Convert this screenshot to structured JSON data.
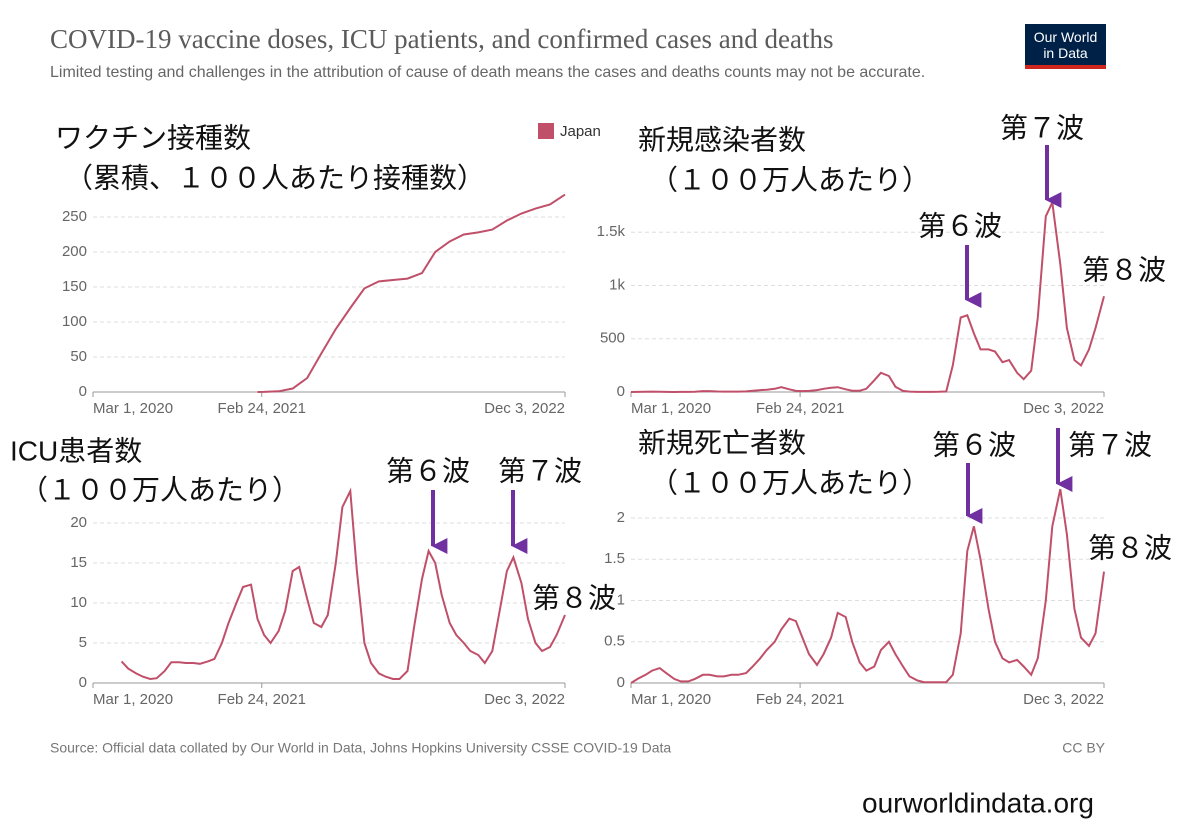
{
  "header": {
    "title": "COVID-19 vaccine doses, ICU patients, and confirmed cases and deaths",
    "subtitle": "Limited testing and challenges in the attribution of cause of death means the cases and deaths counts may not be accurate.",
    "logo": [
      "Our World",
      "in Data"
    ]
  },
  "chart_data": [
    {
      "type": "line",
      "title": [
        "ワクチン接種数",
        "（累積、１００人あたり接種数）"
      ],
      "x": [
        "2021-02-15",
        "2021-03-01",
        "2021-04-01",
        "2021-05-01",
        "2021-06-01",
        "2021-07-01",
        "2021-08-01",
        "2021-09-01",
        "2021-10-01",
        "2021-11-01",
        "2021-12-01",
        "2022-01-01",
        "2022-02-01",
        "2022-03-01",
        "2022-04-01",
        "2022-05-01",
        "2022-06-01",
        "2022-07-01",
        "2022-08-01",
        "2022-09-01",
        "2022-10-01",
        "2022-11-01",
        "2022-12-03"
      ],
      "series": [
        {
          "name": "Japan",
          "color": "#c0506a",
          "values": [
            0,
            0.2,
            1,
            5,
            20,
            55,
            90,
            120,
            148,
            158,
            160,
            162,
            170,
            200,
            215,
            225,
            228,
            232,
            245,
            255,
            262,
            268,
            282
          ]
        }
      ],
      "xlim": [
        "2020-03-01",
        "2022-12-03"
      ],
      "xticks": [
        {
          "value": "2020-03-01",
          "label": "Mar 1, 2020"
        },
        {
          "value": "2021-02-24",
          "label": "Feb 24, 2021"
        },
        {
          "value": "2022-12-03",
          "label": "Dec 3, 2022"
        }
      ],
      "ylim": [
        0,
        290
      ],
      "yticks": [
        0,
        50,
        100,
        150,
        200,
        250
      ],
      "grid": true,
      "annotations": []
    },
    {
      "type": "line",
      "title": [
        "新規感染者数",
        "（１００万人あたり）"
      ],
      "x": [
        "2020-03-01",
        "2020-03-15",
        "2020-04-01",
        "2020-04-15",
        "2020-05-01",
        "2020-05-15",
        "2020-06-01",
        "2020-06-15",
        "2020-07-01",
        "2020-07-15",
        "2020-08-01",
        "2020-08-15",
        "2020-09-01",
        "2020-09-15",
        "2020-10-01",
        "2020-10-15",
        "2020-11-01",
        "2020-11-15",
        "2020-12-01",
        "2020-12-15",
        "2021-01-01",
        "2021-01-15",
        "2021-02-01",
        "2021-02-15",
        "2021-03-01",
        "2021-03-15",
        "2021-04-01",
        "2021-04-15",
        "2021-05-01",
        "2021-05-15",
        "2021-06-01",
        "2021-06-15",
        "2021-07-01",
        "2021-07-15",
        "2021-08-01",
        "2021-08-15",
        "2021-09-01",
        "2021-09-15",
        "2021-10-01",
        "2021-10-15",
        "2021-11-01",
        "2021-11-15",
        "2021-12-01",
        "2021-12-15",
        "2022-01-01",
        "2022-01-15",
        "2022-02-01",
        "2022-02-15",
        "2022-03-01",
        "2022-03-15",
        "2022-04-01",
        "2022-04-15",
        "2022-05-01",
        "2022-05-15",
        "2022-06-01",
        "2022-06-15",
        "2022-07-01",
        "2022-07-15",
        "2022-08-01",
        "2022-08-15",
        "2022-09-01",
        "2022-09-15",
        "2022-10-01",
        "2022-10-15",
        "2022-11-01",
        "2022-11-15",
        "2022-12-03"
      ],
      "series": [
        {
          "name": "Japan",
          "color": "#c0506a",
          "values": [
            0,
            1,
            2,
            4,
            2,
            0.5,
            0.3,
            0.5,
            1,
            3,
            8,
            8,
            5,
            4,
            4,
            4,
            6,
            12,
            18,
            22,
            30,
            45,
            25,
            10,
            8,
            10,
            18,
            30,
            40,
            45,
            25,
            12,
            12,
            30,
            110,
            180,
            150,
            50,
            10,
            4,
            1,
            1,
            1,
            2,
            5,
            250,
            700,
            720,
            550,
            400,
            400,
            380,
            280,
            300,
            180,
            120,
            200,
            700,
            1650,
            1780,
            1200,
            600,
            300,
            250,
            400,
            600,
            900
          ]
        }
      ],
      "xlim": [
        "2020-03-01",
        "2022-12-03"
      ],
      "xticks": [
        {
          "value": "2020-03-01",
          "label": "Mar 1, 2020"
        },
        {
          "value": "2021-02-24",
          "label": "Feb 24, 2021"
        },
        {
          "value": "2022-12-03",
          "label": "Dec 3, 2022"
        }
      ],
      "ylim": [
        0,
        1850
      ],
      "yticks": [
        0,
        500,
        {
          "value": 1000,
          "label": "1k"
        },
        {
          "value": 1500,
          "label": "1.5k"
        }
      ],
      "grid": true,
      "annotations": [
        "第６波",
        "第７波",
        "第８波"
      ]
    },
    {
      "type": "line",
      "title": [
        "ICU患者数",
        "（１００万人あたり）"
      ],
      "x": [
        "2020-05-01",
        "2020-05-15",
        "2020-06-01",
        "2020-06-15",
        "2020-07-01",
        "2020-07-15",
        "2020-08-01",
        "2020-08-15",
        "2020-09-01",
        "2020-09-15",
        "2020-10-01",
        "2020-10-15",
        "2020-11-01",
        "2020-11-15",
        "2020-12-01",
        "2020-12-15",
        "2021-01-01",
        "2021-01-15",
        "2021-02-01",
        "2021-02-15",
        "2021-03-01",
        "2021-03-15",
        "2021-04-01",
        "2021-04-15",
        "2021-05-01",
        "2021-05-15",
        "2021-06-01",
        "2021-06-15",
        "2021-07-01",
        "2021-07-15",
        "2021-08-01",
        "2021-08-15",
        "2021-09-01",
        "2021-09-15",
        "2021-10-01",
        "2021-10-15",
        "2021-11-01",
        "2021-11-15",
        "2021-12-01",
        "2021-12-15",
        "2022-01-01",
        "2022-01-15",
        "2022-02-01",
        "2022-02-15",
        "2022-03-01",
        "2022-03-15",
        "2022-04-01",
        "2022-04-15",
        "2022-05-01",
        "2022-05-15",
        "2022-06-01",
        "2022-06-15",
        "2022-07-01",
        "2022-07-15",
        "2022-08-01",
        "2022-08-15",
        "2022-09-01",
        "2022-09-15",
        "2022-10-01",
        "2022-10-15",
        "2022-11-01",
        "2022-11-15",
        "2022-12-03"
      ],
      "series": [
        {
          "name": "Japan",
          "color": "#c0506a",
          "values": [
            2.7,
            1.8,
            1.2,
            0.8,
            0.5,
            0.6,
            1.5,
            2.6,
            2.6,
            2.5,
            2.5,
            2.4,
            2.7,
            3,
            5,
            7.5,
            10,
            12,
            12.3,
            8,
            6,
            5,
            6.5,
            9,
            14,
            14.5,
            10.5,
            7.5,
            7,
            8.5,
            15,
            22,
            24,
            14,
            5,
            2.5,
            1.2,
            0.8,
            0.5,
            0.5,
            1.5,
            7,
            13,
            16.5,
            15,
            11,
            7.5,
            6,
            5,
            4,
            3.5,
            2.5,
            4,
            8.5,
            14,
            15.7,
            12.5,
            8,
            5,
            4,
            4.5,
            6,
            8.5
          ]
        }
      ],
      "xlim": [
        "2020-03-01",
        "2022-12-03"
      ],
      "xticks": [
        {
          "value": "2020-03-01",
          "label": "Mar 1, 2020"
        },
        {
          "value": "2021-02-24",
          "label": "Feb 24, 2021"
        },
        {
          "value": "2022-12-03",
          "label": "Dec 3, 2022"
        }
      ],
      "ylim": [
        0,
        24.5
      ],
      "yticks": [
        0,
        5,
        10,
        15,
        20
      ],
      "grid": true,
      "annotations": [
        "第６波",
        "第７波",
        "第８波"
      ]
    },
    {
      "type": "line",
      "title": [
        "新規死亡者数",
        "（１００万人あたり）"
      ],
      "x": [
        "2020-03-01",
        "2020-03-15",
        "2020-04-01",
        "2020-04-15",
        "2020-05-01",
        "2020-05-15",
        "2020-06-01",
        "2020-06-15",
        "2020-07-01",
        "2020-07-15",
        "2020-08-01",
        "2020-08-15",
        "2020-09-01",
        "2020-09-15",
        "2020-10-01",
        "2020-10-15",
        "2020-11-01",
        "2020-11-15",
        "2020-12-01",
        "2020-12-15",
        "2021-01-01",
        "2021-01-15",
        "2021-02-01",
        "2021-02-15",
        "2021-03-01",
        "2021-03-15",
        "2021-04-01",
        "2021-04-15",
        "2021-05-01",
        "2021-05-15",
        "2021-06-01",
        "2021-06-15",
        "2021-07-01",
        "2021-07-15",
        "2021-08-01",
        "2021-08-15",
        "2021-09-01",
        "2021-09-15",
        "2021-10-01",
        "2021-10-15",
        "2021-11-01",
        "2021-11-15",
        "2021-12-01",
        "2021-12-15",
        "2022-01-01",
        "2022-01-15",
        "2022-02-01",
        "2022-02-15",
        "2022-03-01",
        "2022-03-15",
        "2022-04-01",
        "2022-04-15",
        "2022-05-01",
        "2022-05-15",
        "2022-06-01",
        "2022-06-15",
        "2022-07-01",
        "2022-07-15",
        "2022-08-01",
        "2022-08-15",
        "2022-09-01",
        "2022-09-15",
        "2022-10-01",
        "2022-10-15",
        "2022-11-01",
        "2022-11-15",
        "2022-12-03"
      ],
      "series": [
        {
          "name": "Japan",
          "color": "#c0506a",
          "values": [
            0,
            0.05,
            0.1,
            0.15,
            0.18,
            0.12,
            0.05,
            0.02,
            0.02,
            0.05,
            0.1,
            0.1,
            0.08,
            0.08,
            0.1,
            0.1,
            0.12,
            0.2,
            0.3,
            0.4,
            0.5,
            0.65,
            0.78,
            0.75,
            0.55,
            0.35,
            0.22,
            0.35,
            0.55,
            0.85,
            0.8,
            0.5,
            0.25,
            0.15,
            0.2,
            0.4,
            0.5,
            0.35,
            0.2,
            0.08,
            0.03,
            0.01,
            0.01,
            0.01,
            0.01,
            0.1,
            0.6,
            1.6,
            1.9,
            1.5,
            0.9,
            0.5,
            0.3,
            0.25,
            0.28,
            0.2,
            0.1,
            0.3,
            1.0,
            1.9,
            2.35,
            1.8,
            0.9,
            0.55,
            0.45,
            0.6,
            1.35
          ]
        }
      ],
      "xlim": [
        "2020-03-01",
        "2022-12-03"
      ],
      "xticks": [
        {
          "value": "2020-03-01",
          "label": "Mar 1, 2020"
        },
        {
          "value": "2021-02-24",
          "label": "Feb 24, 2021"
        },
        {
          "value": "2022-12-03",
          "label": "Dec 3, 2022"
        }
      ],
      "ylim": [
        0,
        2.4
      ],
      "yticks": [
        0,
        0.5,
        1,
        1.5,
        2
      ],
      "grid": true,
      "annotations": [
        "第６波",
        "第７波",
        "第８波"
      ]
    }
  ],
  "footer": {
    "source": "Source: Official data collated by Our World in Data, Johns Hopkins University CSSE COVID-19 Data",
    "license": "CC BY",
    "url": "ourworldindata.org"
  }
}
